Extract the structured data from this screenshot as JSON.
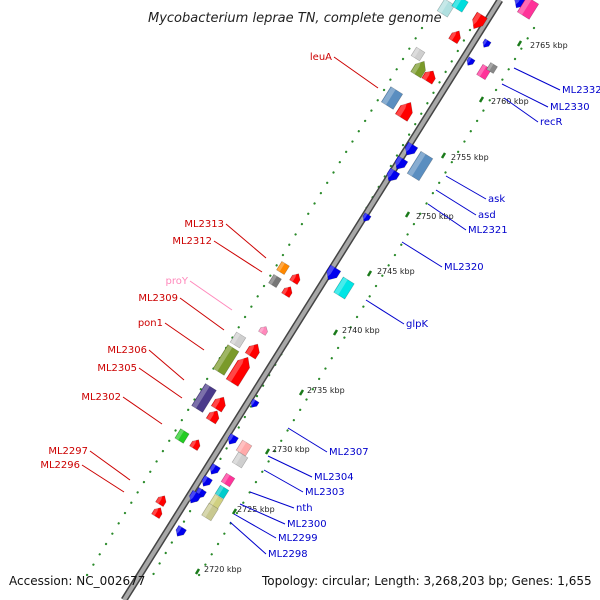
{
  "header": {
    "title": "Mycobacterium leprae TN, complete genome"
  },
  "footer": {
    "accession": "Accession: NC_002677",
    "summary": "Topology: circular; Length: 3,268,203 bp; Genes: 1,655"
  },
  "colors": {
    "forward_label": "#cc0000",
    "reverse_label": "#0000cc",
    "pseudo_label": "#ff88bb",
    "backbone": "#808080",
    "tick_mark": "#1a7a1a",
    "dotted_track": "#2a8a2a"
  },
  "ticks": [
    "2720 kbp",
    "2725 kbp",
    "2730 kbp",
    "2735 kbp",
    "2740 kbp",
    "2745 kbp",
    "2750 kbp",
    "2755 kbp",
    "2760 kbp",
    "2765 kbp"
  ],
  "forward_genes": [
    "leuA",
    "ML2313",
    "ML2312",
    "proY",
    "ML2309",
    "pon1",
    "ML2306",
    "ML2305",
    "ML2302",
    "ML2297",
    "ML2296"
  ],
  "reverse_genes": [
    "ML2332",
    "ML2330",
    "recR",
    "ask",
    "asd",
    "ML2321",
    "ML2320",
    "glpK",
    "ML2307",
    "ML2304",
    "ML2303",
    "nth",
    "ML2300",
    "ML2299",
    "ML2298"
  ]
}
